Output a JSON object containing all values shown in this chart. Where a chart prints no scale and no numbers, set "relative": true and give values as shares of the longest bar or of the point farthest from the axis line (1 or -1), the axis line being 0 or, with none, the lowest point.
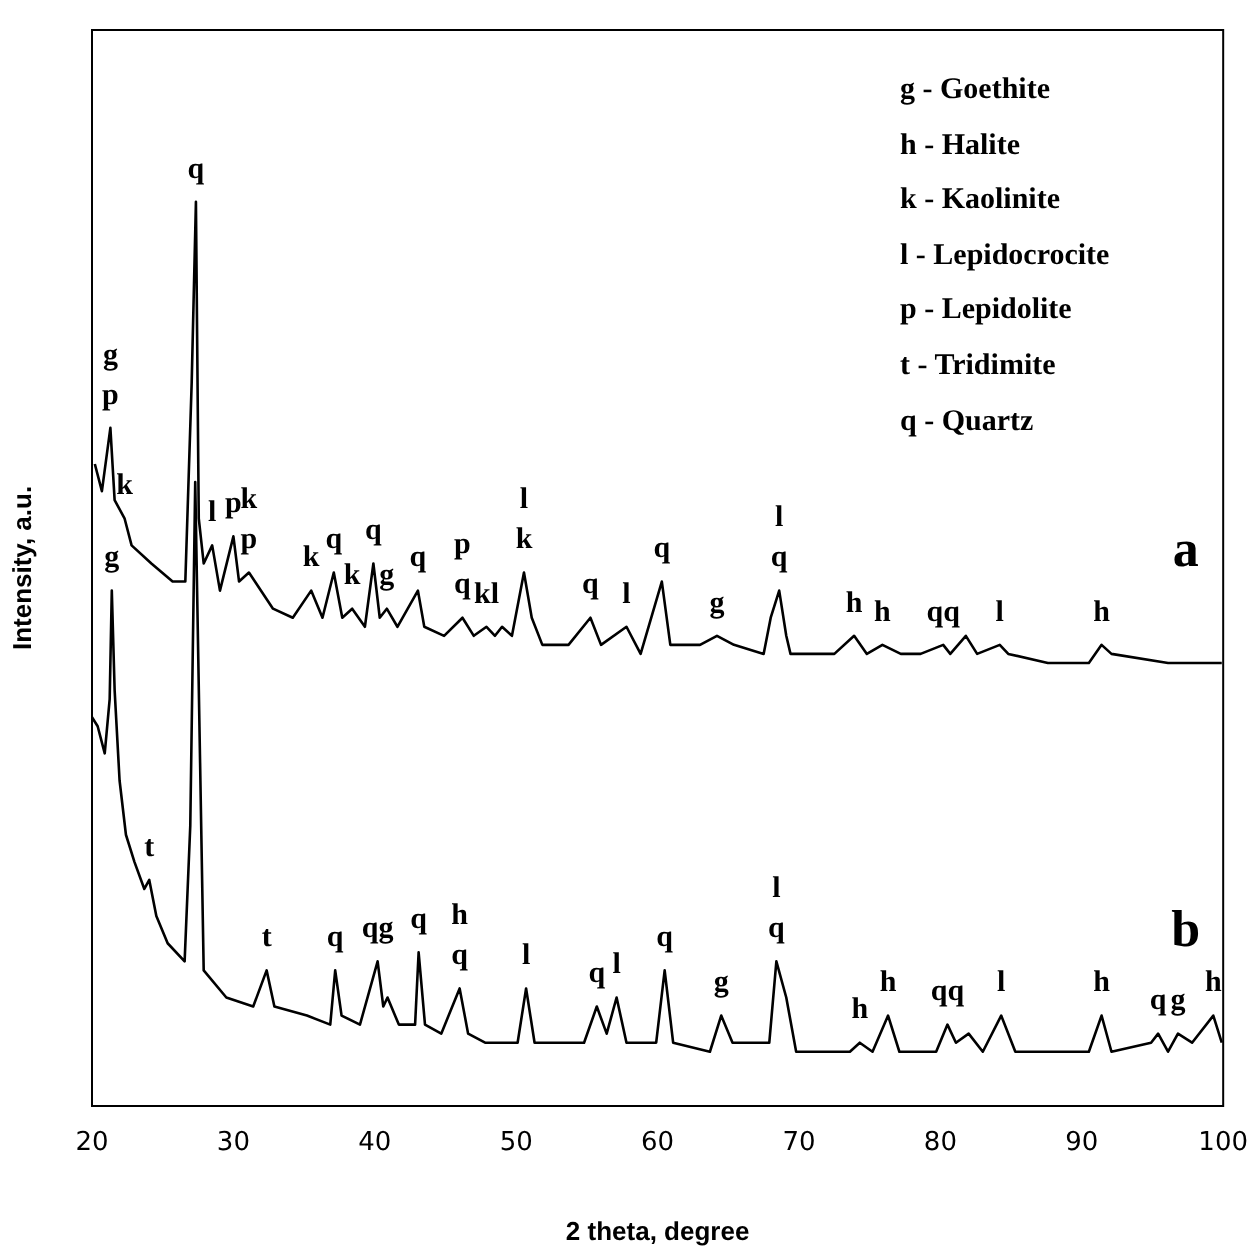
{
  "chart_data": {
    "type": "line",
    "xlabel": "2 theta, degree",
    "ylabel": "Intensity, a.u.",
    "relative": true,
    "tick_labels": "x",
    "grid": false,
    "legend": false,
    "marker": "none",
    "line_style": "solid",
    "xlim": [
      20,
      100
    ],
    "xticks": [
      20,
      30,
      40,
      50,
      60,
      70,
      80,
      90,
      100
    ],
    "series": [
      {
        "name": "a",
        "color": "#000000",
        "x": [
          20.2,
          20.7,
          21.3,
          21.6,
          22.3,
          22.8,
          24.2,
          25.7,
          26.6,
          27.05,
          27.35,
          27.55,
          27.9,
          28.5,
          29.05,
          30.0,
          30.4,
          31.1,
          32.8,
          34.2,
          35.5,
          36.3,
          37.1,
          37.7,
          38.4,
          39.3,
          39.9,
          40.35,
          40.85,
          41.6,
          43.05,
          43.5,
          44.9,
          46.2,
          47.0,
          47.9,
          48.5,
          49.0,
          49.7,
          50.55,
          51.1,
          51.85,
          53.7,
          55.25,
          56.0,
          57.8,
          58.8,
          60.3,
          60.9,
          63.0,
          64.2,
          65.4,
          67.5,
          68.0,
          68.6,
          69.1,
          69.4,
          72.5,
          73.9,
          74.8,
          75.9,
          77.2,
          78.6,
          80.2,
          80.7,
          81.8,
          82.6,
          84.2,
          84.8,
          87.6,
          90.5,
          91.4,
          92.1,
          96.1,
          99.9
        ],
        "values": [
          0.71,
          0.68,
          0.75,
          0.67,
          0.65,
          0.62,
          0.6,
          0.58,
          0.58,
          0.8,
          1.0,
          0.65,
          0.6,
          0.62,
          0.57,
          0.63,
          0.58,
          0.59,
          0.55,
          0.54,
          0.57,
          0.54,
          0.59,
          0.54,
          0.55,
          0.53,
          0.6,
          0.54,
          0.55,
          0.53,
          0.57,
          0.53,
          0.52,
          0.54,
          0.52,
          0.53,
          0.52,
          0.53,
          0.52,
          0.59,
          0.54,
          0.51,
          0.51,
          0.54,
          0.51,
          0.53,
          0.5,
          0.58,
          0.51,
          0.51,
          0.52,
          0.51,
          0.5,
          0.54,
          0.57,
          0.52,
          0.5,
          0.5,
          0.52,
          0.5,
          0.51,
          0.5,
          0.5,
          0.51,
          0.5,
          0.52,
          0.5,
          0.51,
          0.5,
          0.49,
          0.49,
          0.51,
          0.5,
          0.49,
          0.49
        ]
      },
      {
        "name": "b",
        "color": "#000000",
        "x": [
          20.0,
          20.4,
          20.9,
          21.25,
          21.4,
          21.6,
          21.95,
          22.4,
          23.0,
          23.7,
          24.05,
          24.55,
          25.35,
          26.55,
          26.95,
          27.3,
          27.9,
          29.5,
          31.4,
          32.35,
          32.9,
          35.2,
          36.85,
          37.2,
          37.65,
          38.95,
          40.2,
          40.6,
          40.9,
          41.7,
          42.85,
          43.1,
          43.55,
          44.7,
          46.0,
          46.6,
          47.8,
          50.1,
          50.7,
          51.3,
          52.9,
          54.8,
          55.7,
          56.4,
          57.1,
          57.8,
          59.9,
          60.5,
          61.1,
          63.7,
          64.5,
          65.3,
          66.5,
          67.9,
          68.4,
          69.1,
          69.8,
          73.6,
          74.3,
          75.2,
          76.3,
          77.1,
          79.7,
          80.5,
          81.1,
          82.0,
          83.0,
          84.3,
          85.3,
          90.5,
          91.4,
          92.1,
          94.9,
          95.4,
          96.1,
          96.8,
          97.8,
          99.3,
          99.9
        ],
        "values": [
          0.43,
          0.42,
          0.39,
          0.45,
          0.57,
          0.46,
          0.36,
          0.3,
          0.27,
          0.24,
          0.25,
          0.21,
          0.18,
          0.16,
          0.31,
          0.69,
          0.15,
          0.12,
          0.11,
          0.15,
          0.11,
          0.1,
          0.09,
          0.15,
          0.1,
          0.09,
          0.16,
          0.11,
          0.12,
          0.09,
          0.09,
          0.17,
          0.09,
          0.08,
          0.13,
          0.08,
          0.07,
          0.07,
          0.13,
          0.07,
          0.07,
          0.07,
          0.11,
          0.08,
          0.12,
          0.07,
          0.07,
          0.15,
          0.07,
          0.06,
          0.1,
          0.07,
          0.07,
          0.07,
          0.16,
          0.12,
          0.06,
          0.06,
          0.07,
          0.06,
          0.1,
          0.06,
          0.06,
          0.09,
          0.07,
          0.08,
          0.06,
          0.1,
          0.06,
          0.06,
          0.1,
          0.06,
          0.07,
          0.08,
          0.06,
          0.08,
          0.07,
          0.1,
          0.07
        ]
      }
    ],
    "annotations": [
      "g - Goethite",
      "h - Halite",
      "k - Kaolinite",
      "l - Lepidocrocite",
      "p - Lepidolite",
      "t - Tridimite",
      "q - Quartz",
      {
        "text": "q",
        "x": 27.35,
        "y": 1.0
      },
      {
        "text": "p",
        "x": 21.3,
        "y": 0.75
      },
      {
        "text": "g",
        "x": 21.3,
        "y": 0.75
      },
      {
        "text": "k",
        "x": 22.3,
        "y": 0.65
      },
      {
        "text": "l",
        "x": 28.5,
        "y": 0.62
      },
      {
        "text": "p",
        "x": 30.0,
        "y": 0.63
      },
      {
        "text": "p",
        "x": 31.1,
        "y": 0.59
      },
      {
        "text": "k",
        "x": 31.1,
        "y": 0.59
      },
      {
        "text": "k",
        "x": 35.5,
        "y": 0.57
      },
      {
        "text": "q",
        "x": 37.1,
        "y": 0.59
      },
      {
        "text": "k",
        "x": 38.4,
        "y": 0.55
      },
      {
        "text": "q",
        "x": 39.9,
        "y": 0.6
      },
      {
        "text": "g",
        "x": 40.85,
        "y": 0.55
      },
      {
        "text": "q",
        "x": 43.05,
        "y": 0.57
      },
      {
        "text": "q",
        "x": 46.2,
        "y": 0.54
      },
      {
        "text": "p",
        "x": 46.2,
        "y": 0.54
      },
      {
        "text": "kl",
        "x": 47.9,
        "y": 0.53
      },
      {
        "text": "k",
        "x": 50.55,
        "y": 0.59
      },
      {
        "text": "l",
        "x": 50.55,
        "y": 0.59
      },
      {
        "text": "q",
        "x": 55.25,
        "y": 0.54
      },
      {
        "text": "l",
        "x": 57.8,
        "y": 0.53
      },
      {
        "text": "q",
        "x": 60.3,
        "y": 0.58
      },
      {
        "text": "g",
        "x": 64.2,
        "y": 0.52
      },
      {
        "text": "q",
        "x": 68.6,
        "y": 0.57
      },
      {
        "text": "l",
        "x": 68.6,
        "y": 0.57
      },
      {
        "text": "h",
        "x": 73.9,
        "y": 0.52
      },
      {
        "text": "h",
        "x": 75.9,
        "y": 0.51
      },
      {
        "text": "qq",
        "x": 80.2,
        "y": 0.51
      },
      {
        "text": "l",
        "x": 84.2,
        "y": 0.51
      },
      {
        "text": "h",
        "x": 91.4,
        "y": 0.51
      },
      {
        "text": "g",
        "x": 21.4,
        "y": 0.57
      },
      {
        "text": "t",
        "x": 24.05,
        "y": 0.25
      },
      {
        "text": "t",
        "x": 32.35,
        "y": 0.15
      },
      {
        "text": "q",
        "x": 37.2,
        "y": 0.15
      },
      {
        "text": "qg",
        "x": 40.2,
        "y": 0.16
      },
      {
        "text": "q",
        "x": 43.1,
        "y": 0.17
      },
      {
        "text": "q",
        "x": 46.0,
        "y": 0.13
      },
      {
        "text": "h",
        "x": 46.0,
        "y": 0.13
      },
      {
        "text": "l",
        "x": 50.7,
        "y": 0.13
      },
      {
        "text": "q",
        "x": 55.7,
        "y": 0.11
      },
      {
        "text": "l",
        "x": 57.1,
        "y": 0.12
      },
      {
        "text": "q",
        "x": 60.5,
        "y": 0.15
      },
      {
        "text": "g",
        "x": 64.5,
        "y": 0.1
      },
      {
        "text": "q",
        "x": 68.4,
        "y": 0.16
      },
      {
        "text": "l",
        "x": 68.4,
        "y": 0.16
      },
      {
        "text": "h",
        "x": 74.3,
        "y": 0.07
      },
      {
        "text": "h",
        "x": 76.3,
        "y": 0.1
      },
      {
        "text": "qq",
        "x": 80.5,
        "y": 0.09
      },
      {
        "text": "l",
        "x": 84.3,
        "y": 0.1
      },
      {
        "text": "h",
        "x": 91.4,
        "y": 0.1
      },
      {
        "text": "q",
        "x": 95.4,
        "y": 0.08
      },
      {
        "text": "g",
        "x": 96.8,
        "y": 0.08
      },
      {
        "text": "h",
        "x": 99.3,
        "y": 0.1
      }
    ]
  }
}
